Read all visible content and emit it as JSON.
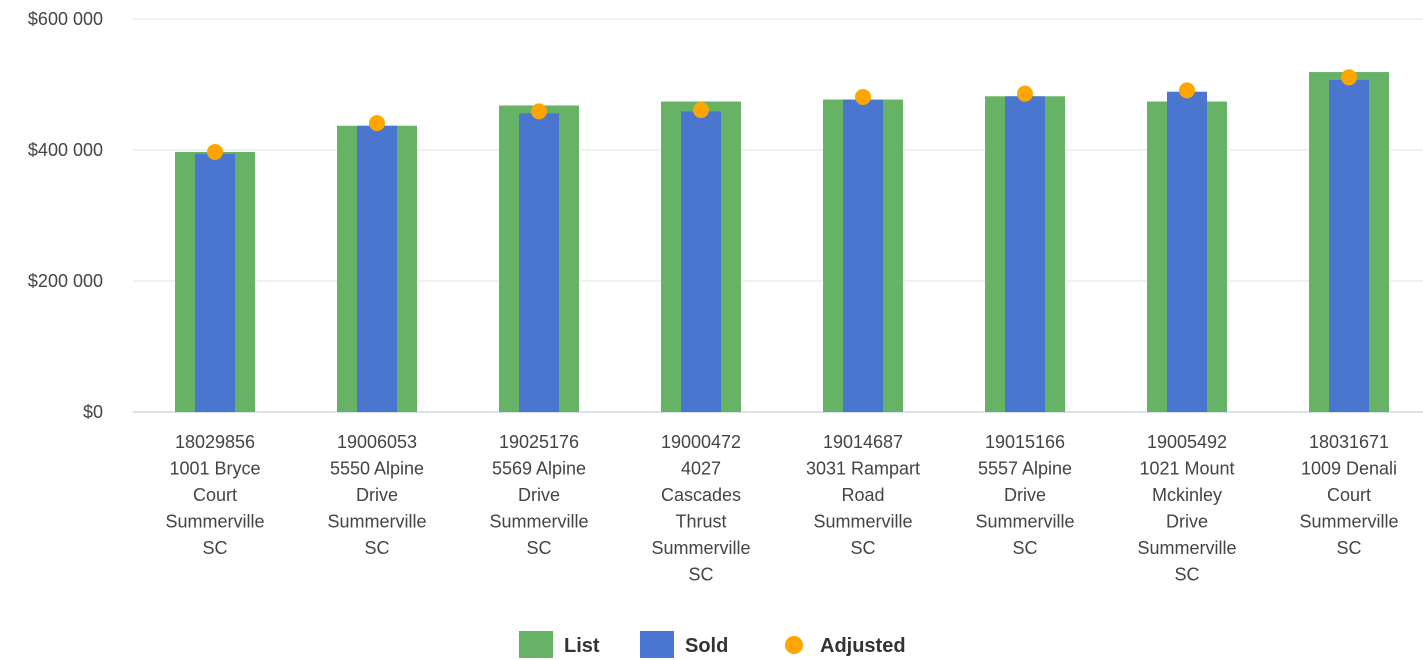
{
  "chart_data": {
    "type": "bar",
    "ylim": [
      0,
      600000
    ],
    "y_ticks": [
      {
        "value": 0,
        "label": "$0"
      },
      {
        "value": 200000,
        "label": "$200 000"
      },
      {
        "value": 400000,
        "label": "$400 000"
      },
      {
        "value": 600000,
        "label": "$600 000"
      }
    ],
    "grid": true,
    "legend_position": "bottom",
    "categories": [
      [
        "18029856",
        "1001 Bryce",
        "Court",
        "Summerville",
        "SC"
      ],
      [
        "19006053",
        "5550 Alpine",
        "Drive",
        "Summerville",
        "SC"
      ],
      [
        "19025176",
        "5569 Alpine",
        "Drive",
        "Summerville",
        "SC"
      ],
      [
        "19000472",
        "4027",
        "Cascades",
        "Thrust",
        "Summerville",
        "SC"
      ],
      [
        "19014687",
        "3031 Rampart",
        "Road",
        "Summerville",
        "SC"
      ],
      [
        "19015166",
        "5557 Alpine",
        "Drive",
        "Summerville",
        "SC"
      ],
      [
        "19005492",
        "1021 Mount",
        "Mckinley",
        "Drive",
        "Summerville",
        "SC"
      ],
      [
        "18031671",
        "1009 Denali",
        "Court",
        "Summerville",
        "SC"
      ]
    ],
    "series": [
      {
        "name": "List",
        "kind": "bar",
        "color": "#66b366",
        "values": [
          397000,
          437000,
          468000,
          474000,
          477000,
          482000,
          474000,
          519000
        ]
      },
      {
        "name": "Sold",
        "kind": "bar",
        "color": "#4a76cf",
        "values": [
          394000,
          437000,
          456000,
          459000,
          477000,
          482000,
          489000,
          507000
        ]
      },
      {
        "name": "Adjusted",
        "kind": "scatter",
        "color": "#ffa500",
        "values": [
          397000,
          441000,
          459000,
          461000,
          481000,
          486000,
          491000,
          511000
        ]
      }
    ]
  }
}
